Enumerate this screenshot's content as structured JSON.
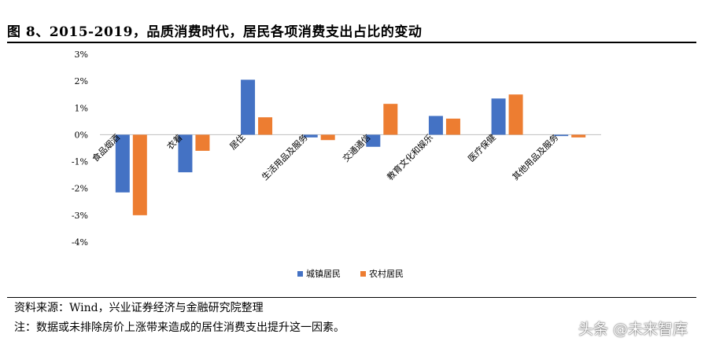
{
  "title": "图 8、2015-2019，品质消费时代，居民各项消费支出占比的变动",
  "source": "资料来源：Wind，兴业证券经济与金融研究院整理",
  "note": "注：数据或未排除房价上涨带来造成的居住消费支出提升这一因素。",
  "watermark": "头条 @未来智库",
  "chart_data": {
    "type": "bar",
    "categories": [
      "食品烟酒",
      "衣着",
      "居住",
      "生活用品及服务",
      "交通通信",
      "教育文化和娱乐",
      "医疗保健",
      "其他用品及服务"
    ],
    "series": [
      {
        "name": "城镇居民",
        "color": "#4472C4",
        "values": [
          -2.15,
          -1.4,
          2.05,
          -0.1,
          -0.45,
          0.7,
          1.35,
          -0.05
        ]
      },
      {
        "name": "农村居民",
        "color": "#ED7D31",
        "values": [
          -3.0,
          -0.6,
          0.65,
          -0.2,
          1.15,
          0.6,
          1.5,
          -0.1
        ]
      }
    ],
    "ylim": [
      -4,
      3
    ],
    "yticks": [
      "3%",
      "2%",
      "1%",
      "0%",
      "-1%",
      "-2%",
      "-3%",
      "-4%"
    ],
    "legend_position": "bottom-center"
  }
}
